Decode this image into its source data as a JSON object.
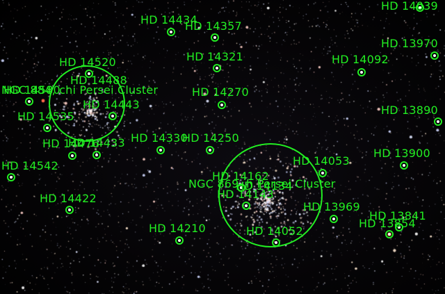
{
  "annotation_color": "#22ee22",
  "clusters": [
    {
      "name": "NGC 869",
      "label": "NGC 869, h Persei Cluster"
    },
    {
      "name": "NGC 884",
      "label": "NGC 884, chi Persei Cluster"
    }
  ],
  "stars": [
    {
      "name": "HD 14039"
    },
    {
      "name": "HD 14434"
    },
    {
      "name": "HD 14357"
    },
    {
      "name": "HD 13970"
    },
    {
      "name": "HD 14321"
    },
    {
      "name": "HD 14092"
    },
    {
      "name": "HD 14520"
    },
    {
      "name": "HD 14488"
    },
    {
      "name": "HD 14580"
    },
    {
      "name": "HD 14270"
    },
    {
      "name": "HD 14443"
    },
    {
      "name": "HD 13890"
    },
    {
      "name": "HD 14535"
    },
    {
      "name": "HD 14330"
    },
    {
      "name": "HD 14250"
    },
    {
      "name": "HD 14476"
    },
    {
      "name": "HD 14433"
    },
    {
      "name": "HD 13900"
    },
    {
      "name": "HD 14053"
    },
    {
      "name": "HD 14542"
    },
    {
      "name": "HD 14162"
    },
    {
      "name": "HD 14134"
    },
    {
      "name": "HD 14143"
    },
    {
      "name": "HD 14422"
    },
    {
      "name": "HD 13969"
    },
    {
      "name": "HD 13841"
    },
    {
      "name": "HD 13854"
    },
    {
      "name": "HD 14210"
    },
    {
      "name": "HD 14052"
    }
  ]
}
